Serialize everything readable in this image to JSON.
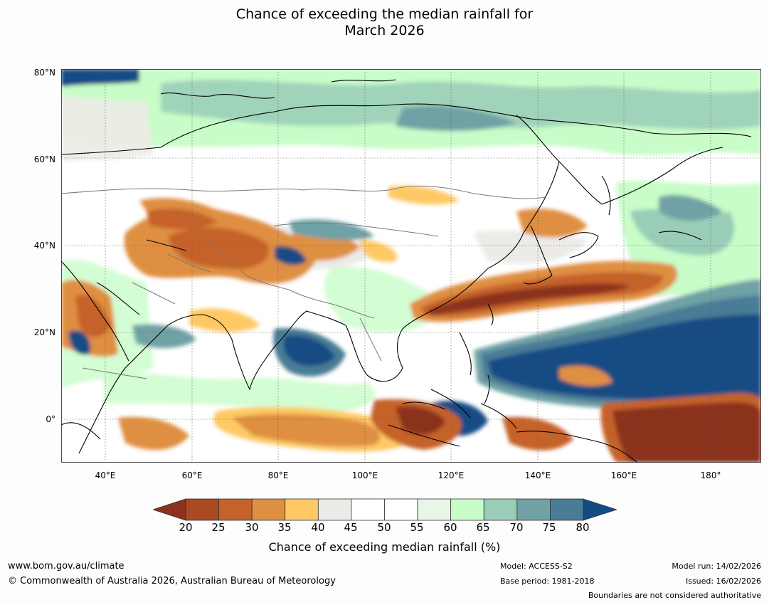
{
  "title": {
    "line1": "Chance of exceeding the median rainfall for",
    "line2": "March 2026"
  },
  "map": {
    "lat_labels": [
      "80°N",
      "60°N",
      "40°N",
      "20°N",
      "0°"
    ],
    "lon_labels": [
      "40°E",
      "60°E",
      "80°E",
      "100°E",
      "120°E",
      "140°E",
      "160°E",
      "180°"
    ]
  },
  "colorbar": {
    "ticks": [
      "20",
      "25",
      "30",
      "35",
      "40",
      "45",
      "50",
      "55",
      "60",
      "65",
      "70",
      "75",
      "80"
    ],
    "colors": [
      "#aa4a22",
      "#c5622c",
      "#df8f42",
      "#fec965",
      "#ecebe7",
      "#ffffff",
      "#ffffff",
      "#e8f6e8",
      "#c8fcc8",
      "#99cdb7",
      "#6fa1a5",
      "#497c96"
    ],
    "under_color": "#8b321c",
    "over_color": "#134c84",
    "label": "Chance of exceeding median rainfall (%)"
  },
  "footer": {
    "website": "www.bom.gov.au/climate",
    "copyright": "© Commonwealth of Australia 2026, Australian Bureau of Meteorology",
    "model": "Model: ACCESS-S2",
    "base_period": "Base period: 1981-2018",
    "model_run": "Model run: 14/02/2026",
    "issued": "Issued: 16/02/2026",
    "disclaimer": "Boundaries are not considered authoritative"
  }
}
